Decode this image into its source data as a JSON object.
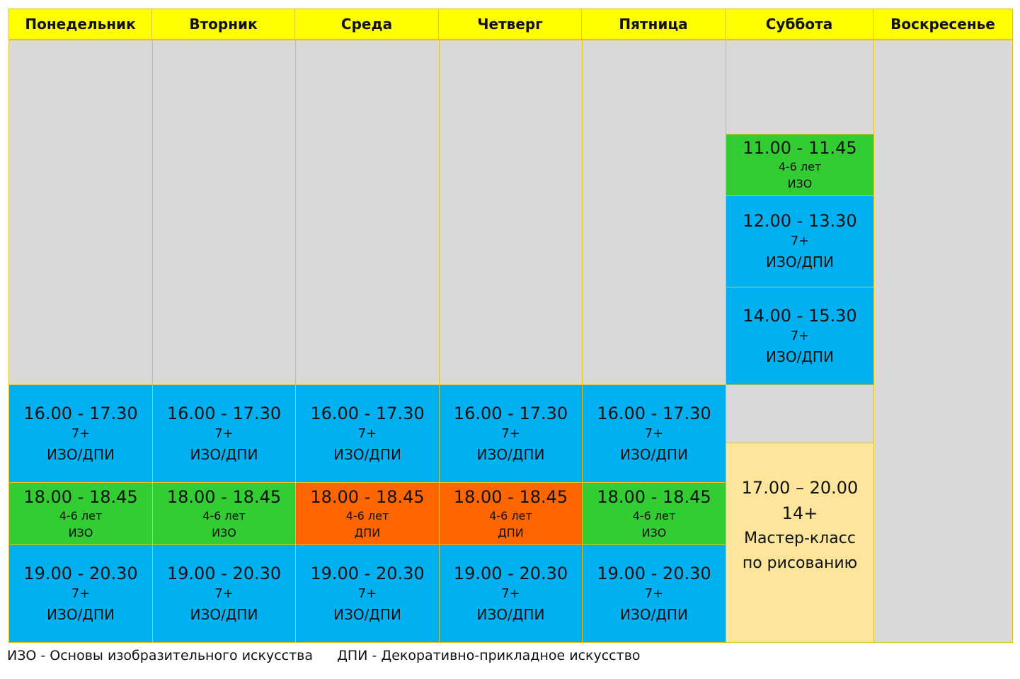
{
  "days": [
    "Понедельник",
    "Вторник",
    "Среда",
    "Четверг",
    "Пятница",
    "Суббота",
    "Воскресенье"
  ],
  "weekday_slots": [
    {
      "time": "16.00 - 17.30",
      "age": "7+",
      "subject": "ИЗО/ДПИ"
    },
    {
      "time": "18.00 - 18.45",
      "age": "4-6 лет",
      "subject_izo": "ИЗО",
      "subject_dpi": "ДПИ"
    },
    {
      "time": "19.00 - 20.30",
      "age": "7+",
      "subject": "ИЗО/ДПИ"
    }
  ],
  "saturday": {
    "slot1": {
      "time": "11.00 - 11.45",
      "age": "4-6 лет",
      "subject": "ИЗО"
    },
    "slot2": {
      "time": "12.00 - 13.30",
      "age": "7+",
      "subject": "ИЗО/ДПИ"
    },
    "slot3": {
      "time": "14.00  - 15.30",
      "age": "7+",
      "subject": "ИЗО/ДПИ"
    },
    "masterclass": {
      "time": "17.00 – 20.00",
      "age": "14+",
      "line1": "Мастер-класс",
      "line2": "по рисованию"
    }
  },
  "colors": {
    "header": "#ffff00",
    "empty": "#d9d9d9",
    "seven_plus": "#00b0f0",
    "izo_kids": "#33cc33",
    "dpi_kids": "#ff6600",
    "masterclass": "#fde59b"
  },
  "legend": {
    "izo": "ИЗО - Основы изобразительного искусства",
    "dpi": "ДПИ - Декоративно-прикладное искусство"
  }
}
